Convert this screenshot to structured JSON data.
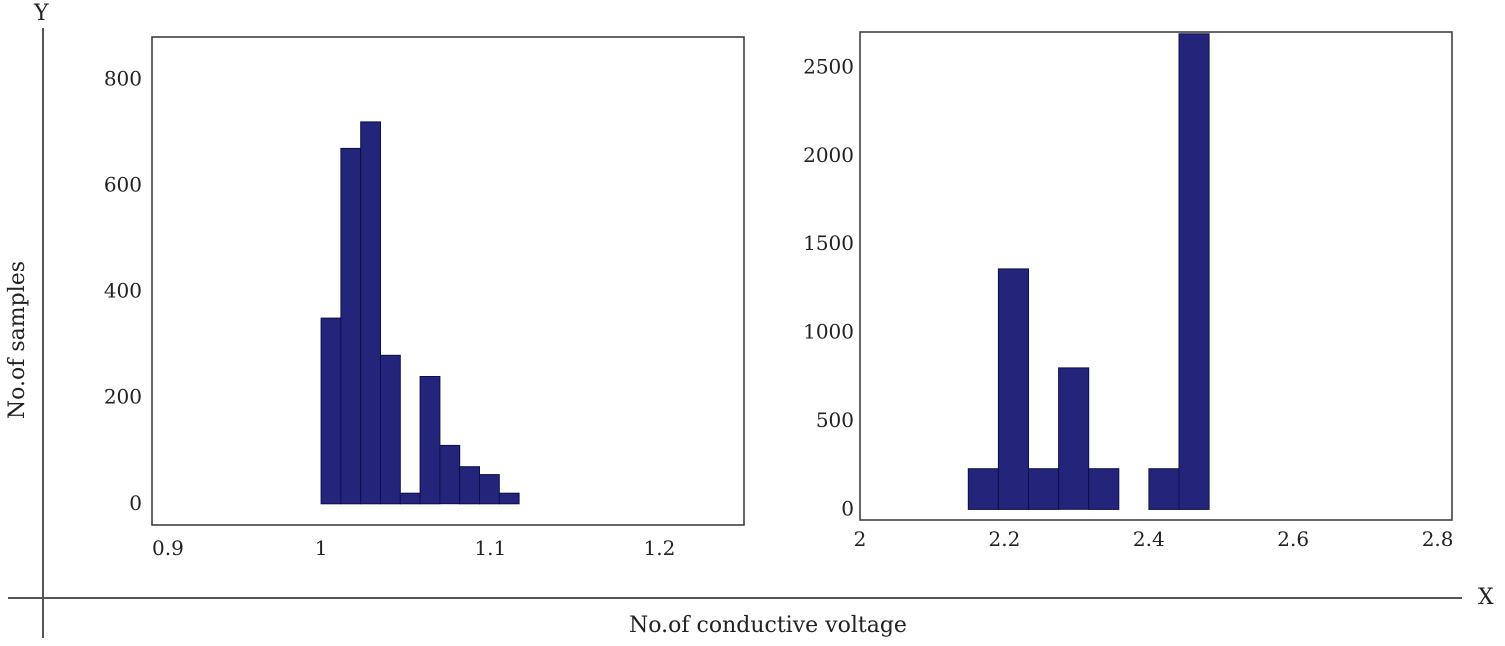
{
  "outer_axes": {
    "y_letter": "Y",
    "x_letter": "X",
    "y_title": "No.of samples",
    "x_title": "No.of conductive voltage"
  },
  "colors": {
    "bar": "#23257a",
    "bar_dark": "#15165a",
    "axis": "#555555"
  },
  "chart_data": [
    {
      "type": "bar",
      "title": "",
      "xlabel": "",
      "ylabel": "",
      "xlim": [
        0.9,
        1.25
      ],
      "ylim": [
        -40,
        880
      ],
      "xticks": [
        0.9,
        1,
        1.1,
        1.2
      ],
      "xtick_labels": [
        "0.9",
        "1",
        "1.1",
        "1.2"
      ],
      "yticks": [
        0,
        200,
        400,
        600,
        800
      ],
      "ytick_labels": [
        "0",
        "200",
        "400",
        "600",
        "800"
      ],
      "bin_width": 0.0117,
      "bins": [
        1.0,
        1.0117,
        1.0234,
        1.0351,
        1.0468,
        1.0585,
        1.0702,
        1.0819,
        1.0936,
        1.1053
      ],
      "values": [
        350,
        670,
        720,
        280,
        20,
        240,
        110,
        70,
        55,
        20
      ],
      "grid": false
    },
    {
      "type": "bar",
      "title": "",
      "xlabel": "",
      "ylabel": "",
      "xlim": [
        2.0,
        2.82
      ],
      "ylim": [
        -60,
        2700
      ],
      "xticks": [
        2.0,
        2.2,
        2.4,
        2.6,
        2.8
      ],
      "xtick_labels": [
        "2",
        "2.2",
        "2.4",
        "2.6",
        "2.8"
      ],
      "yticks": [
        0,
        500,
        1000,
        1500,
        2000,
        2500
      ],
      "ytick_labels": [
        "0",
        "500",
        "1000",
        "1500",
        "2000",
        "2500"
      ],
      "bin_width": 0.0417,
      "bins": [
        2.15,
        2.1917,
        2.2334,
        2.2751,
        2.3168,
        2.3585,
        2.4002,
        2.4419
      ],
      "values": [
        230,
        1360,
        230,
        800,
        230,
        0,
        230,
        2690
      ],
      "grid": false
    }
  ]
}
